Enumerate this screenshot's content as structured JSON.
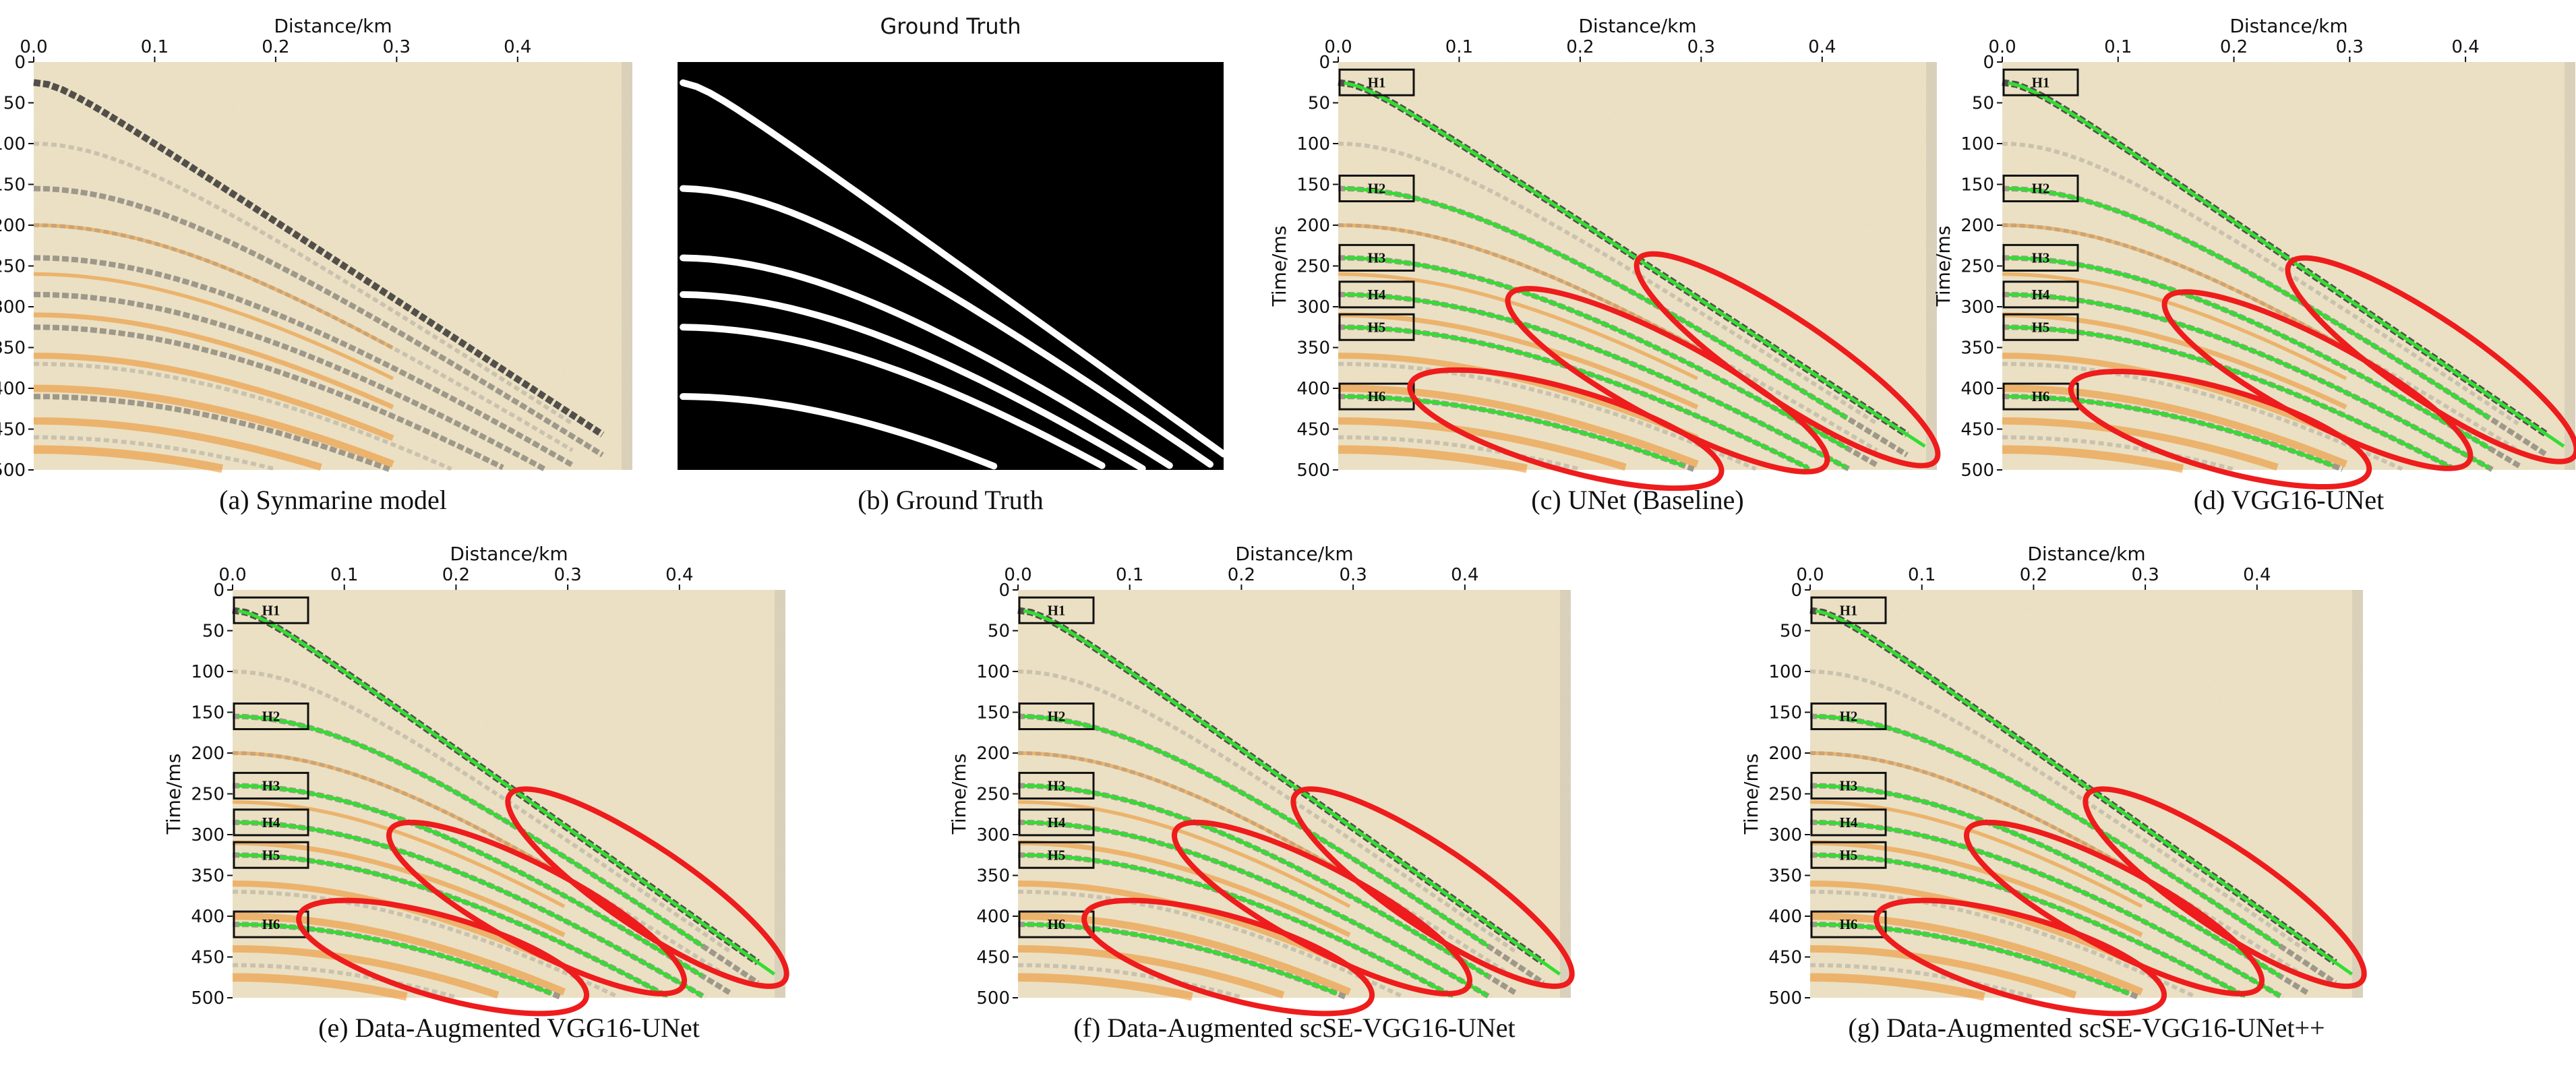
{
  "figure": {
    "ground_truth_title": "Ground Truth",
    "panels": [
      {
        "id": "a",
        "caption": "(a) Synmarine model",
        "kind": "seismic",
        "picks": false
      },
      {
        "id": "b",
        "caption": "(b) Ground Truth",
        "kind": "mask",
        "picks": false
      },
      {
        "id": "c",
        "caption": "(c) UNet (Baseline)",
        "kind": "seismic",
        "picks": true
      },
      {
        "id": "d",
        "caption": "(d) VGG16-UNet",
        "kind": "seismic",
        "picks": true
      },
      {
        "id": "e",
        "caption": "(e)  Data-Augmented VGG16-UNet",
        "kind": "seismic",
        "picks": true
      },
      {
        "id": "f",
        "caption": "(f)  Data-Augmented scSE-VGG16-UNet",
        "kind": "seismic",
        "picks": true
      },
      {
        "id": "g",
        "caption": "(g)  Data-Augmented scSE-VGG16-UNet++",
        "kind": "seismic",
        "picks": true
      }
    ]
  },
  "chart_data": {
    "type": "heatmap",
    "xlabel": "Distance/km",
    "ylabel": "Time/ms",
    "xlim": [
      0,
      0.48
    ],
    "ylim": [
      500,
      0
    ],
    "x_ticks": [
      "0.0",
      "0.1",
      "0.2",
      "0.3",
      "0.4"
    ],
    "y_ticks": [
      "0",
      "50",
      "100",
      "150",
      "200",
      "250",
      "300",
      "350",
      "400",
      "450",
      "500"
    ],
    "horizon_labels": [
      "H1",
      "H2",
      "H3",
      "H4",
      "H5",
      "H6"
    ],
    "horizons_ms_at_zero_offset": [
      25,
      155,
      240,
      285,
      325,
      410
    ],
    "colors": {
      "background": "#efe4c6",
      "dark_event": "#2b2b2b",
      "orange_event": "#f08a1e",
      "pick_green": "#33dd33",
      "ellipse_red": "#ee1c1c",
      "mask_bg": "#000000",
      "mask_line": "#ffffff"
    }
  }
}
